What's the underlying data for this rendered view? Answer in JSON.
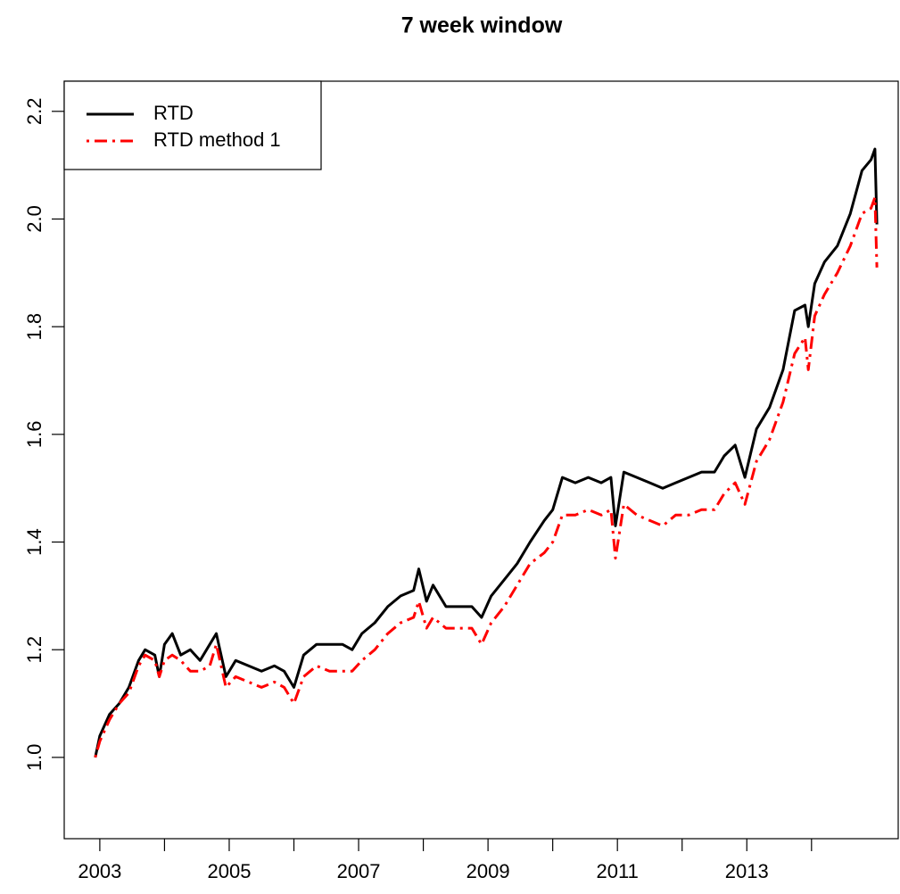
{
  "chart_data": {
    "type": "line",
    "title": "7 week window",
    "x": [
      2002.93,
      2003.0,
      2003.15,
      2003.3,
      2003.45,
      2003.6,
      2003.7,
      2003.85,
      2003.92,
      2004.0,
      2004.12,
      2004.25,
      2004.4,
      2004.55,
      2004.7,
      2004.8,
      2004.95,
      2005.1,
      2005.3,
      2005.5,
      2005.7,
      2005.85,
      2006.0,
      2006.15,
      2006.35,
      2006.55,
      2006.75,
      2006.9,
      2007.05,
      2007.25,
      2007.45,
      2007.65,
      2007.85,
      2007.93,
      2008.05,
      2008.15,
      2008.35,
      2008.55,
      2008.75,
      2008.9,
      2009.05,
      2009.25,
      2009.45,
      2009.65,
      2009.87,
      2010.0,
      2010.15,
      2010.35,
      2010.55,
      2010.75,
      2010.9,
      2010.97,
      2011.1,
      2011.3,
      2011.5,
      2011.7,
      2011.9,
      2012.1,
      2012.3,
      2012.5,
      2012.65,
      2012.82,
      2012.97,
      2013.15,
      2013.35,
      2013.56,
      2013.74,
      2013.9,
      2013.95,
      2014.05,
      2014.2,
      2014.4,
      2014.6,
      2014.78,
      2014.92,
      2014.98,
      2015.01
    ],
    "series": [
      {
        "name": "RTD",
        "color": "#000000",
        "linestyle": "solid",
        "values": [
          1.0,
          1.04,
          1.08,
          1.1,
          1.13,
          1.18,
          1.2,
          1.19,
          1.15,
          1.21,
          1.23,
          1.19,
          1.2,
          1.18,
          1.21,
          1.23,
          1.15,
          1.18,
          1.17,
          1.16,
          1.17,
          1.16,
          1.13,
          1.19,
          1.21,
          1.21,
          1.21,
          1.2,
          1.23,
          1.25,
          1.28,
          1.3,
          1.31,
          1.35,
          1.29,
          1.32,
          1.28,
          1.28,
          1.28,
          1.26,
          1.3,
          1.33,
          1.36,
          1.4,
          1.44,
          1.46,
          1.52,
          1.51,
          1.52,
          1.51,
          1.52,
          1.43,
          1.53,
          1.52,
          1.51,
          1.5,
          1.51,
          1.52,
          1.53,
          1.53,
          1.56,
          1.58,
          1.52,
          1.61,
          1.65,
          1.72,
          1.83,
          1.84,
          1.8,
          1.88,
          1.92,
          1.95,
          2.01,
          2.09,
          2.11,
          2.13,
          1.99
        ]
      },
      {
        "name": "RTD method 1",
        "color": "#ff0000",
        "linestyle": "dotdash",
        "values": [
          1.0,
          1.03,
          1.07,
          1.1,
          1.12,
          1.17,
          1.19,
          1.18,
          1.15,
          1.18,
          1.19,
          1.18,
          1.16,
          1.16,
          1.17,
          1.21,
          1.13,
          1.15,
          1.14,
          1.13,
          1.14,
          1.13,
          1.1,
          1.15,
          1.17,
          1.16,
          1.16,
          1.16,
          1.18,
          1.2,
          1.23,
          1.25,
          1.26,
          1.29,
          1.24,
          1.26,
          1.24,
          1.24,
          1.24,
          1.21,
          1.25,
          1.28,
          1.32,
          1.36,
          1.38,
          1.4,
          1.45,
          1.45,
          1.46,
          1.45,
          1.46,
          1.37,
          1.47,
          1.45,
          1.44,
          1.43,
          1.45,
          1.45,
          1.46,
          1.46,
          1.49,
          1.51,
          1.47,
          1.55,
          1.59,
          1.66,
          1.75,
          1.78,
          1.72,
          1.82,
          1.86,
          1.9,
          1.95,
          2.01,
          2.02,
          2.04,
          1.91
        ]
      }
    ],
    "xlim": [
      2002.45,
      2015.34
    ],
    "ylim": [
      0.849,
      2.256
    ],
    "xticks": [
      2003,
      {
        "value": 2004
      },
      2005,
      {
        "value": 2006
      },
      2007,
      {
        "value": 2008
      },
      2009,
      {
        "value": 2010
      },
      2011,
      {
        "value": 2012
      },
      2013,
      {
        "value": 2014
      }
    ],
    "yticks": [
      {
        "value": 1,
        "label": "1.0"
      },
      1.2,
      1.4,
      1.6,
      1.8,
      {
        "value": 2,
        "label": "2.0"
      },
      2.2
    ],
    "legend": "top-left"
  }
}
